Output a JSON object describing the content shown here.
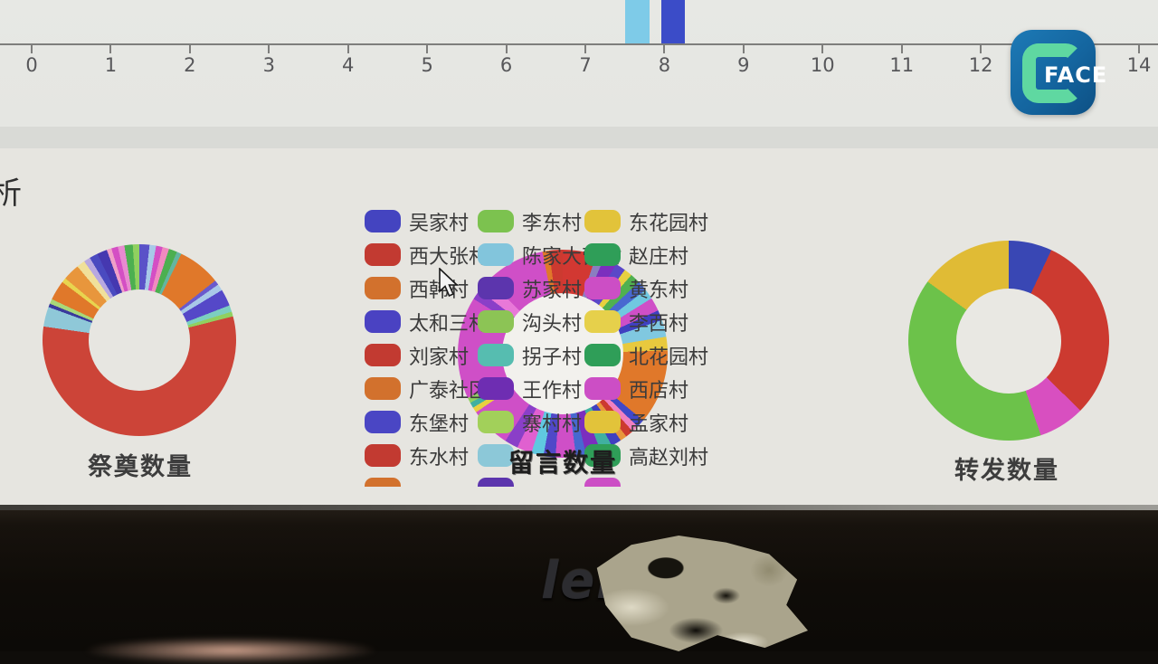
{
  "screen": {
    "left_edge_text": "析"
  },
  "face_badge": {
    "label": "FACE",
    "bg_color": "#14659f",
    "c_color": "#5fd8a1"
  },
  "monitor": {
    "brand": "lenovo"
  },
  "legend": {
    "columns": [
      {
        "items": [
          {
            "label": "吴家村",
            "color": "#4444c0"
          },
          {
            "label": "西大张村",
            "color": "#c23a31"
          },
          {
            "label": "西韩村",
            "color": "#d2712d"
          },
          {
            "label": "太和三村",
            "color": "#4a42c2"
          },
          {
            "label": "刘家村",
            "color": "#c23a31"
          },
          {
            "label": "广泰社区",
            "color": "#d2712d"
          },
          {
            "label": "东堡村",
            "color": "#4a46c4"
          },
          {
            "label": "东水村",
            "color": "#c23a31"
          },
          {
            "label": "",
            "color": "#d2712d"
          }
        ]
      },
      {
        "items": [
          {
            "label": "李东村",
            "color": "#7cc24f"
          },
          {
            "label": "陈家大营村",
            "color": "#82c5dc"
          },
          {
            "label": "苏家村",
            "color": "#5c35ad"
          },
          {
            "label": "沟头村",
            "color": "#8cc455"
          },
          {
            "label": "拐子村",
            "color": "#56bdb0"
          },
          {
            "label": "王作村",
            "color": "#6e2db2"
          },
          {
            "label": "寨村村",
            "color": "#a2d05a"
          },
          {
            "label": "",
            "color": "#8cc8d8"
          },
          {
            "label": "",
            "color": "#5c35ad"
          }
        ]
      },
      {
        "items": [
          {
            "label": "东花园村",
            "color": "#e2c33a"
          },
          {
            "label": "赵庄村",
            "color": "#2f9e58"
          },
          {
            "label": "黄东村",
            "color": "#cc4ec5"
          },
          {
            "label": "李西村",
            "color": "#e6d04b"
          },
          {
            "label": "北花园村",
            "color": "#2f9e58"
          },
          {
            "label": "西店村",
            "color": "#cc4ec5"
          },
          {
            "label": "孟家村",
            "color": "#e2c33a"
          },
          {
            "label": "高赵刘村",
            "color": "#2f9e58"
          },
          {
            "label": "",
            "color": "#cc4ec5"
          }
        ]
      }
    ]
  },
  "chart_data": [
    {
      "type": "bar",
      "title": "",
      "x_tick_labels": [
        "0",
        "1",
        "2",
        "3",
        "4",
        "5",
        "6",
        "7",
        "8",
        "9",
        "10",
        "11",
        "12",
        "13",
        "14"
      ],
      "x_range": [
        0,
        14
      ],
      "layout": "horizontal axis at top of frame, only bottoms of two bars visible",
      "bars": [
        {
          "x_start": 7.5,
          "x_end": 7.81,
          "color": "#7ecbe8"
        },
        {
          "x_start": 7.96,
          "x_end": 8.26,
          "color": "#3b4cc8"
        }
      ]
    },
    {
      "type": "pie",
      "variant": "donut",
      "title": "祭奠数量",
      "segments": [
        [
          "#5a52c8",
          1.7
        ],
        [
          "#a8c8e8",
          1.1
        ],
        [
          "#d44fc4",
          1.1
        ],
        [
          "#f08ac0",
          1.1
        ],
        [
          "#4caf50",
          1.4
        ],
        [
          "#64b5a0",
          0.8
        ],
        [
          "#e0782a",
          7.2
        ],
        [
          "#6a5acd",
          0.8
        ],
        [
          "#a8c8e8",
          1.1
        ],
        [
          "#5548c8",
          2.8
        ],
        [
          "#7ccfc0",
          1.1
        ],
        [
          "#90d060",
          0.8
        ],
        [
          "#cc4438",
          56.1
        ],
        [
          "#8fc8d8",
          3.3
        ],
        [
          "#3a3a9c",
          0.6
        ],
        [
          "#a8d878",
          0.8
        ],
        [
          "#e0782a",
          3.3
        ],
        [
          "#e8d44f",
          0.8
        ],
        [
          "#e8963c",
          2.8
        ],
        [
          "#f0e09a",
          1.4
        ],
        [
          "#b8a8e0",
          1.1
        ],
        [
          "#4a4ac0",
          1.4
        ],
        [
          "#4538b0",
          1.7
        ],
        [
          "#f0a0c8",
          0.8
        ],
        [
          "#d44fc4",
          1.1
        ],
        [
          "#e88ad0",
          1.1
        ],
        [
          "#4caf50",
          1.4
        ],
        [
          "#90d060",
          1.1
        ]
      ]
    },
    {
      "type": "pie",
      "variant": "donut",
      "title": "留言数量",
      "segments": [
        [
          "#d23832",
          5
        ],
        [
          "#8a7ec0",
          1.2
        ],
        [
          "#7b2fbe",
          2
        ],
        [
          "#5a48c8",
          1.5
        ],
        [
          "#e8d040",
          1.2
        ],
        [
          "#50b050",
          1.5
        ],
        [
          "#4868d0",
          1.5
        ],
        [
          "#70c8e0",
          1.5
        ],
        [
          "#cf4fc7",
          2
        ],
        [
          "#4040c0",
          1.5
        ],
        [
          "#80c8e0",
          2.5
        ],
        [
          "#e8c93e",
          2
        ],
        [
          "#e0782a",
          11
        ],
        [
          "#4048c8",
          1.2
        ],
        [
          "#f080c0",
          1
        ],
        [
          "#cc3a30",
          1.2
        ],
        [
          "#e8963c",
          1
        ],
        [
          "#4040c0",
          1.5
        ],
        [
          "#40b0a0",
          1.8
        ],
        [
          "#7b2fbe",
          2.2
        ],
        [
          "#4868d0",
          1.5
        ],
        [
          "#cf4fc7",
          3
        ],
        [
          "#5048c8",
          1.8
        ],
        [
          "#60c8e0",
          1.8
        ],
        [
          "#e060d0",
          2.2
        ],
        [
          "#8a3fc8",
          2
        ],
        [
          "#cf4fc7",
          6
        ],
        [
          "#e8d040",
          0.8
        ],
        [
          "#40b0a0",
          0.8
        ],
        [
          "#90d060",
          0.8
        ],
        [
          "#cf4fc7",
          15
        ],
        [
          "#8a3fc8",
          1.5
        ],
        [
          "#e878d8",
          2
        ],
        [
          "#cf4fc7",
          9
        ],
        [
          "#e0782a",
          1
        ],
        [
          "#cc3a30",
          2
        ]
      ]
    },
    {
      "type": "pie",
      "variant": "donut",
      "title": "转发数量",
      "segments": [
        [
          "#3947b4",
          7
        ],
        [
          "#cc3a30",
          30.3
        ],
        [
          "#d84fc0",
          7.5
        ],
        [
          "#6cc24a",
          40.2
        ],
        [
          "#e0bb35",
          15
        ]
      ]
    }
  ]
}
